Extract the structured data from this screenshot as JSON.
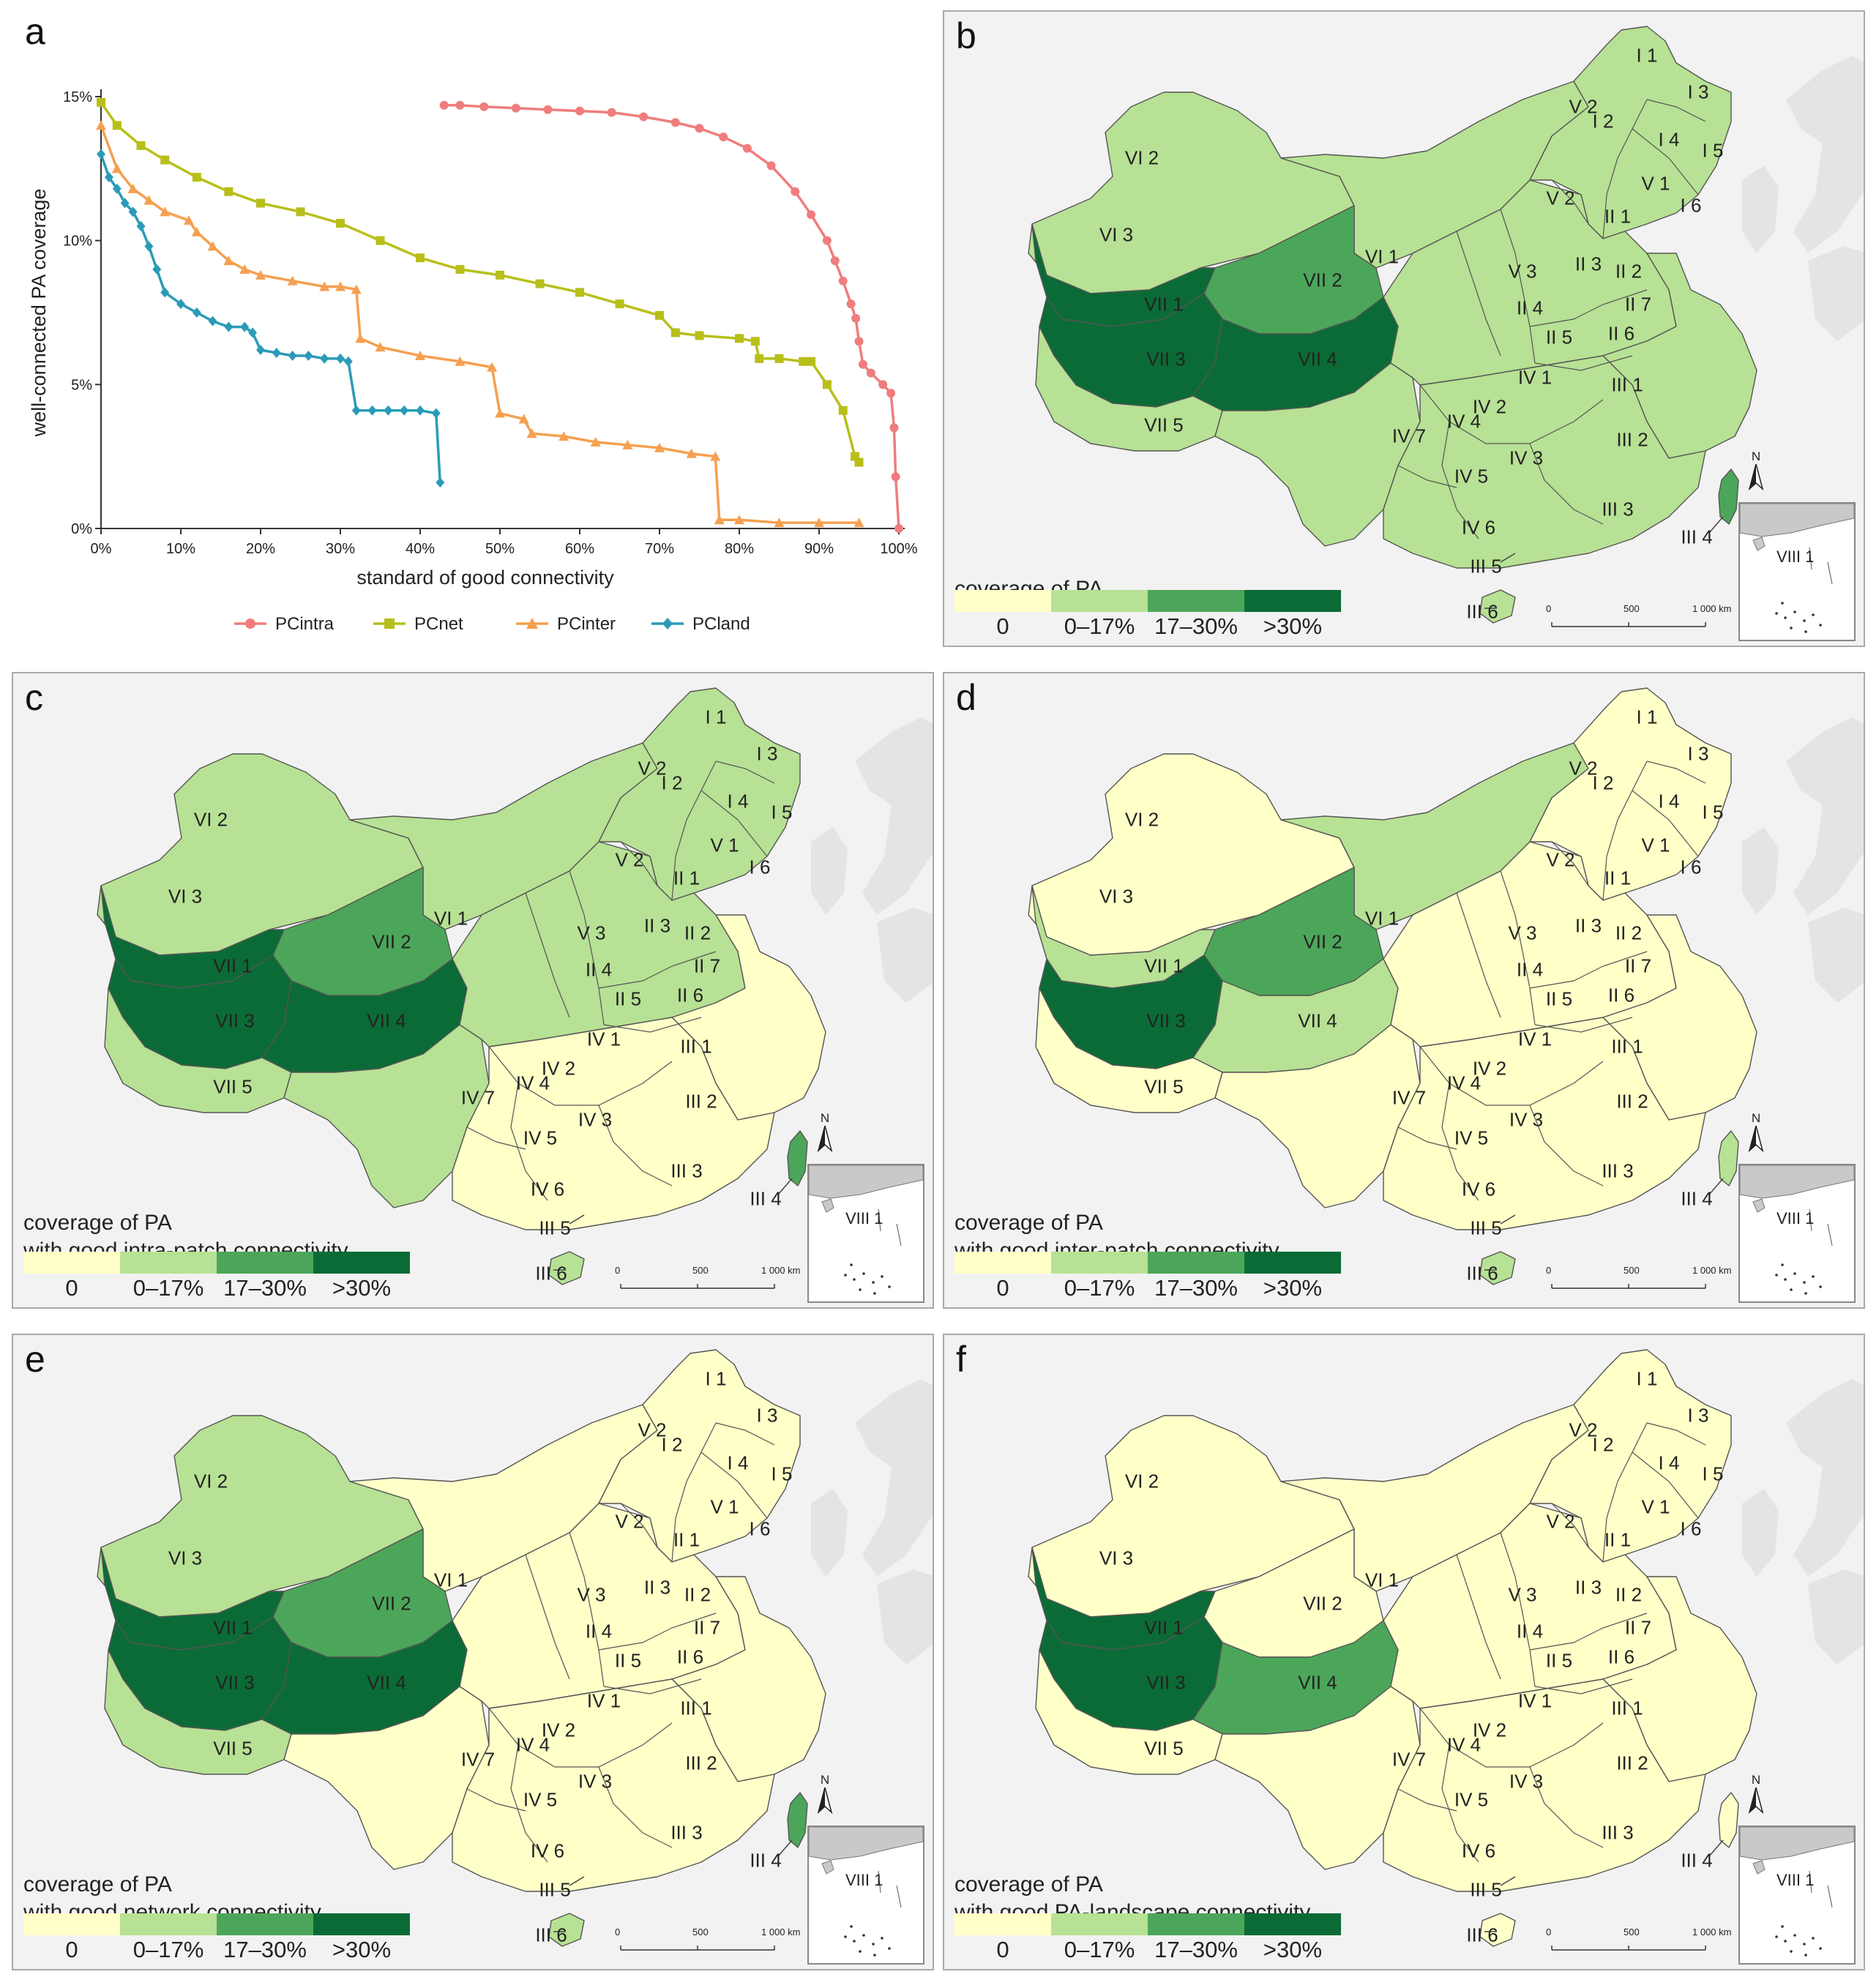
{
  "panels": {
    "a": "a",
    "b": "b",
    "c": "c",
    "d": "d",
    "e": "e",
    "f": "f"
  },
  "chart_data": {
    "type": "line",
    "xlabel": "standard of good connectivity",
    "ylabel": "well-connected PA coverage",
    "xlim": [
      0,
      100
    ],
    "ylim": [
      0,
      15
    ],
    "xticks": [
      "0%",
      "10%",
      "20%",
      "30%",
      "40%",
      "50%",
      "60%",
      "70%",
      "80%",
      "90%",
      "100%"
    ],
    "yticks": [
      "0%",
      "5%",
      "10%",
      "15%"
    ],
    "legend_position": "bottom",
    "series": [
      {
        "name": "PCintra",
        "color": "#ef7d7d",
        "x": [
          43,
          45,
          48,
          52,
          56,
          60,
          64,
          68,
          72,
          75,
          78,
          81,
          84,
          87,
          89,
          91,
          92,
          93,
          94,
          94.6,
          95,
          95.5,
          96.5,
          98,
          99,
          99.4,
          99.6,
          100
        ],
        "y": [
          14.7,
          14.7,
          14.65,
          14.6,
          14.55,
          14.5,
          14.45,
          14.3,
          14.1,
          13.9,
          13.6,
          13.2,
          12.6,
          11.7,
          10.9,
          10.0,
          9.3,
          8.6,
          7.8,
          7.3,
          6.5,
          5.7,
          5.4,
          5.0,
          4.7,
          3.5,
          1.8,
          0
        ]
      },
      {
        "name": "PCnet",
        "color": "#b8bf1a",
        "x": [
          0,
          2,
          5,
          8,
          12,
          16,
          20,
          25,
          30,
          35,
          40,
          45,
          50,
          55,
          60,
          65,
          70,
          72,
          75,
          80,
          82,
          82.5,
          85,
          88,
          89,
          91,
          93,
          94.5,
          95
        ],
        "y": [
          14.8,
          14.0,
          13.3,
          12.8,
          12.2,
          11.7,
          11.3,
          11.0,
          10.6,
          10.0,
          9.4,
          9.0,
          8.8,
          8.5,
          8.2,
          7.8,
          7.4,
          6.8,
          6.7,
          6.6,
          6.5,
          5.9,
          5.9,
          5.8,
          5.8,
          5.0,
          4.1,
          2.5,
          2.3
        ]
      },
      {
        "name": "PCinter",
        "color": "#f5a050",
        "x": [
          0,
          2,
          4,
          6,
          8,
          11,
          12,
          14,
          16,
          18,
          20,
          24,
          28,
          30,
          32,
          32.5,
          35,
          40,
          45,
          49,
          50,
          53,
          54,
          58,
          62,
          66,
          70,
          74,
          77,
          77.5,
          80,
          85,
          90,
          95
        ],
        "y": [
          14.0,
          12.5,
          11.8,
          11.4,
          11.0,
          10.7,
          10.3,
          9.8,
          9.3,
          9.0,
          8.8,
          8.6,
          8.4,
          8.4,
          8.3,
          6.6,
          6.3,
          6.0,
          5.8,
          5.6,
          4.0,
          3.8,
          3.3,
          3.2,
          3.0,
          2.9,
          2.8,
          2.6,
          2.5,
          0.3,
          0.3,
          0.2,
          0.2,
          0.2
        ]
      },
      {
        "name": "PCland",
        "color": "#2a9bb7",
        "x": [
          0,
          1,
          2,
          3,
          4,
          5,
          6,
          7,
          8,
          10,
          12,
          14,
          16,
          18,
          19,
          20,
          22,
          24,
          26,
          28,
          30,
          31,
          32,
          34,
          36,
          38,
          40,
          42,
          42.5
        ],
        "y": [
          13.0,
          12.2,
          11.8,
          11.3,
          11.0,
          10.5,
          9.8,
          9.0,
          8.2,
          7.8,
          7.5,
          7.2,
          7.0,
          7.0,
          6.8,
          6.2,
          6.1,
          6.0,
          6.0,
          5.9,
          5.9,
          5.8,
          4.1,
          4.1,
          4.1,
          4.1,
          4.1,
          4.0,
          1.6
        ]
      }
    ]
  },
  "map_common": {
    "legend_labels": [
      "0",
      "0–17%",
      "17–30%",
      ">30%"
    ],
    "legend_colors": [
      "#ffffc8",
      "#b7e194",
      "#4ca65a",
      "#0b6b36"
    ],
    "scale_ticks": [
      "0",
      "500",
      "1 000 km"
    ],
    "north": "N",
    "inset_label": "VIII 1"
  },
  "maps": [
    {
      "letter": "b",
      "title": [
        "coverage of PA"
      ],
      "colors": {
        "north": "#b7e194",
        "xinjiang": "#b7e194",
        "inner": "#b7e194",
        "vii1": "#0b6b36",
        "vii2": "#4ca65a",
        "vii3": "#0b6b36",
        "vii4": "#0b6b36",
        "vii5": "#b7e194",
        "sw": "#b7e194",
        "central": "#b7e194",
        "south": "#b7e194",
        "east": "#b7e194",
        "taiwan": "#4ca65a",
        "hainan": "#b7e194"
      },
      "labels": {
        "I1": "I 1",
        "I2": "I 2",
        "I3": "I 3",
        "I4": "I 4",
        "I5": "I 5",
        "I6": "I 6",
        "II1": "II 1",
        "II2": "II 2",
        "II3": "II 3",
        "II4": "II 4",
        "II5": "II 5",
        "II6": "II 6",
        "II7": "II 7",
        "III1": "III 1",
        "III2": "III 2",
        "III3": "III 3",
        "III4": "III 4",
        "III5": "III 5",
        "III6": "III 6",
        "IV1": "IV 1",
        "IV2": "IV 2",
        "IV3": "IV 3",
        "IV4": "IV 4",
        "IV5": "IV 5",
        "IV6": "IV 6",
        "IV7": "IV 7",
        "V1": "V 1",
        "V2a": "V 2",
        "V2b": "V 2",
        "V3": "V 3",
        "VI1": "VI 1",
        "VI2": "VI 2",
        "VI3": "VI 3",
        "VII1": "VII 1",
        "VII2": "VII 2",
        "VII3": "VII 3",
        "VII4": "VII 4",
        "VII5": "VII 5"
      }
    },
    {
      "letter": "c",
      "title": [
        "coverage of PA",
        "with good intra-patch connectivity"
      ],
      "colors": {
        "north": "#b7e194",
        "xinjiang": "#b7e194",
        "inner": "#b7e194",
        "vii1": "#0b6b36",
        "vii2": "#4ca65a",
        "vii3": "#0b6b36",
        "vii4": "#0b6b36",
        "vii5": "#b7e194",
        "sw": "#b7e194",
        "central": "#b7e194",
        "south": "#ffffc8",
        "east": "#ffffc8",
        "taiwan": "#4ca65a",
        "hainan": "#b7e194"
      },
      "labels": {
        "I1": "I 1",
        "I2": "I 2",
        "I3": "I 3",
        "I4": "I 4",
        "I5": "I 5",
        "I6": "I 6",
        "II1": "II 1",
        "II2": "II 2",
        "II3": "II 3",
        "II4": "II 4",
        "II5": "II 5",
        "II6": "II 6",
        "II7": "II 7",
        "III1": "III 1",
        "III2": "III 2",
        "III3": "III 3",
        "III4": "III 4",
        "III5": "III 5",
        "III6": "III 6",
        "IV1": "IV 1",
        "IV2": "IV 2",
        "IV3": "IV 3",
        "IV4": "IV 4",
        "IV5": "IV 5",
        "IV6": "IV 6",
        "IV7": "IV 7",
        "V1": "V 1",
        "V2a": "V 2",
        "V2b": "V 2",
        "V3": "V 3",
        "VI1": "VI 1",
        "VI2": "VI 2",
        "VI3": "VI 3",
        "VII1": "VII 1",
        "VII2": "VII 2",
        "VII3": "VII 3",
        "VII4": "VII 4",
        "VII5": "VII 5"
      }
    },
    {
      "letter": "d",
      "title": [
        "coverage of PA",
        "with good inter-patch connectivity"
      ],
      "colors": {
        "north": "#ffffc8",
        "xinjiang": "#ffffc8",
        "inner": "#b7e194",
        "vii1": "#b7e194",
        "vii2": "#4ca65a",
        "vii3": "#0b6b36",
        "vii4": "#b7e194",
        "vii5": "#ffffc8",
        "sw": "#ffffc8",
        "central": "#ffffc8",
        "south": "#ffffc8",
        "east": "#ffffc8",
        "taiwan": "#b7e194",
        "hainan": "#b7e194"
      },
      "labels": {
        "I1": "I 1",
        "I2": "I 2",
        "I3": "I 3",
        "I4": "I 4",
        "I5": "I 5",
        "I6": "I 6",
        "II1": "II 1",
        "II2": "II 2",
        "II3": "II 3",
        "II4": "II 4",
        "II5": "II 5",
        "II6": "II 6",
        "II7": "II 7",
        "III1": "III 1",
        "III2": "III 2",
        "III3": "III 3",
        "III4": "III 4",
        "III5": "III 5",
        "III6": "III 6",
        "IV1": "IV 1",
        "IV2": "IV 2",
        "IV3": "IV 3",
        "IV4": "IV 4",
        "IV5": "IV 5",
        "IV6": "IV 6",
        "IV7": "IV 7",
        "V1": "V 1",
        "V2a": "V 2",
        "V2b": "V 2",
        "V3": "V 3",
        "VI1": "VI 1",
        "VI2": "VI 2",
        "VI3": "VI 3",
        "VII1": "VII 1",
        "VII2": "VII 2",
        "VII3": "VII 3",
        "VII4": "VII 4",
        "VII5": "VII 5"
      }
    },
    {
      "letter": "e",
      "title": [
        "coverage of PA",
        "with good network connectivity"
      ],
      "colors": {
        "north": "#ffffc8",
        "xinjiang": "#b7e194",
        "inner": "#ffffc8",
        "vii1": "#0b6b36",
        "vii2": "#4ca65a",
        "vii3": "#0b6b36",
        "vii4": "#0b6b36",
        "vii5": "#b7e194",
        "sw": "#ffffc8",
        "central": "#ffffc8",
        "south": "#ffffc8",
        "east": "#ffffc8",
        "taiwan": "#4ca65a",
        "hainan": "#b7e194"
      },
      "labels": {
        "I1": "I 1",
        "I2": "I 2",
        "I3": "I 3",
        "I4": "I 4",
        "I5": "I 5",
        "I6": "I 6",
        "II1": "II 1",
        "II2": "II 2",
        "II3": "II 3",
        "II4": "II 4",
        "II5": "II 5",
        "II6": "II 6",
        "II7": "II 7",
        "III1": "III 1",
        "III2": "III 2",
        "III3": "III 3",
        "III4": "III 4",
        "III5": "III 5",
        "III6": "III 6",
        "IV1": "IV 1",
        "IV2": "IV 2",
        "IV3": "IV 3",
        "IV4": "IV 4",
        "IV5": "IV 5",
        "IV6": "IV 6",
        "IV7": "IV 7",
        "V1": "V 1",
        "V2a": "V 2",
        "V2b": "V 2",
        "V3": "V 3",
        "VI1": "VI 1",
        "VI2": "VI 2",
        "VI3": "VI 3",
        "VII1": "VII 1",
        "VII2": "VII 2",
        "VII3": "VII 3",
        "VII4": "VII 4",
        "VII5": "VII 5"
      }
    },
    {
      "letter": "f",
      "title": [
        "coverage of PA",
        "with good PA-landscape connectivity"
      ],
      "colors": {
        "north": "#ffffc8",
        "xinjiang": "#ffffc8",
        "inner": "#ffffc8",
        "vii1": "#0b6b36",
        "vii2": "#ffffc8",
        "vii3": "#0b6b36",
        "vii4": "#4ca65a",
        "vii5": "#ffffc8",
        "sw": "#ffffc8",
        "central": "#ffffc8",
        "south": "#ffffc8",
        "east": "#ffffc8",
        "taiwan": "#ffffc8",
        "hainan": "#ffffc8"
      },
      "labels": {
        "I1": "I 1",
        "I2": "I 2",
        "I3": "I 3",
        "I4": "I 4",
        "I5": "I 5",
        "I6": "I 6",
        "II1": "II 1",
        "II2": "II 2",
        "II3": "II 3",
        "II4": "II 4",
        "II5": "II 5",
        "II6": "II 6",
        "II7": "II 7",
        "III1": "III 1",
        "III2": "III 2",
        "III3": "III 3",
        "III4": "III 4",
        "III5": "III 5",
        "III6": "III 6",
        "IV1": "IV 1",
        "IV2": "IV 2",
        "IV3": "IV 3",
        "IV4": "IV 4",
        "IV5": "IV 5",
        "IV6": "IV 6",
        "IV7": "IV 7",
        "V1": "V 1",
        "V2a": "V 2",
        "V2b": "V 2",
        "V3": "V 3",
        "VI1": "VI 1",
        "VI2": "VI 2",
        "VI3": "VI 3",
        "VII1": "VII 1",
        "VII2": "VII 2",
        "VII3": "VII 3",
        "VII4": "VII 4",
        "VII5": "VII 5"
      }
    }
  ]
}
